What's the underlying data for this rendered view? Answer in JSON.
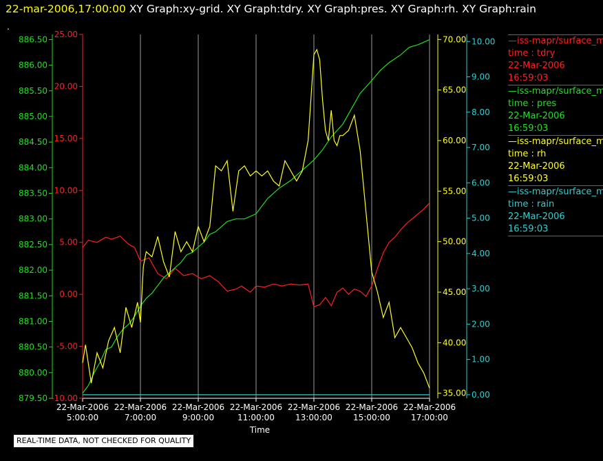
{
  "header": {
    "timestamp": "22-mar-2006,17:00:00",
    "segments": [
      "XY Graph:xy-grid.",
      "XY Graph:tdry.",
      "XY Graph:pres.",
      "XY Graph:rh.",
      "XY Graph:rain"
    ],
    "dot": "."
  },
  "legend": [
    {
      "name": "—iss-mapr/surface_m",
      "line2": "time : tdry",
      "line3": "22-Mar-2006",
      "line4": "16:59:03",
      "color": "#ff2020"
    },
    {
      "name": "—iss-mapr/surface_m",
      "line2": "time : pres",
      "line3": "22-Mar-2006",
      "line4": "16:59:03",
      "color": "#20e020"
    },
    {
      "name": "—iss-mapr/surface_m",
      "line2": "time : rh",
      "line3": "22-Mar-2006",
      "line4": "16:59:03",
      "color": "#ffff20"
    },
    {
      "name": "—iss-mapr/surface_m",
      "line2": "time : rain",
      "line3": "22-Mar-2006",
      "line4": "16:59:03",
      "color": "#30d0d0"
    }
  ],
  "disclaimer": "REAL-TIME DATA, NOT CHECKED FOR QUALITY",
  "chart_data": {
    "type": "line",
    "xlabel": "Time",
    "x_ticks": [
      {
        "date": "22-Mar-2006",
        "time": "5:00:00"
      },
      {
        "date": "22-Mar-2006",
        "time": "7:00:00"
      },
      {
        "date": "22-Mar-2006",
        "time": "9:00:00"
      },
      {
        "date": "22-Mar-2006",
        "time": "11:00:00"
      },
      {
        "date": "22-Mar-2006",
        "time": "13:00:00"
      },
      {
        "date": "22-Mar-2006",
        "time": "15:00:00"
      },
      {
        "date": "22-Mar-2006",
        "time": "17:00:00"
      }
    ],
    "x_hours": [
      5,
      7,
      9,
      11,
      13,
      15,
      17
    ],
    "xlim": [
      5,
      17
    ],
    "grid": "vertical",
    "axes": {
      "tdry": {
        "color": "#ff2020",
        "ylim": [
          -10,
          25
        ],
        "ticks": [
          "25.00",
          "20.00",
          "15.00",
          "10.00",
          "5.00",
          "0.00",
          "-5.00",
          "-10.00"
        ]
      },
      "pres": {
        "color": "#20e020",
        "ylim": [
          879.5,
          886.6
        ],
        "ticks": [
          "886.50",
          "886.00",
          "885.50",
          "885.00",
          "884.50",
          "884.00",
          "883.50",
          "883.00",
          "882.50",
          "882.00",
          "881.50",
          "881.00",
          "880.50",
          "880.00",
          "879.50"
        ]
      },
      "rh": {
        "color": "#ffff20",
        "ylim": [
          34.5,
          70.5
        ],
        "ticks": [
          "70.00",
          "65.00",
          "60.00",
          "55.00",
          "50.00",
          "45.00",
          "40.00",
          "35.00"
        ]
      },
      "rain": {
        "color": "#30d0d0",
        "ylim": [
          -0.1,
          10.2
        ],
        "ticks": [
          "10.00",
          "9.00",
          "8.00",
          "7.00",
          "6.00",
          "5.00",
          "4.00",
          "3.00",
          "2.00",
          "1.00",
          "0.00"
        ]
      }
    },
    "series": [
      {
        "axis": "tdry",
        "x": [
          5.0,
          5.2,
          5.5,
          5.8,
          6.0,
          6.3,
          6.6,
          6.8,
          7.0,
          7.3,
          7.6,
          7.9,
          8.2,
          8.5,
          8.8,
          9.1,
          9.4,
          9.7,
          10.0,
          10.3,
          10.5,
          10.8,
          11.0,
          11.3,
          11.6,
          11.9,
          12.2,
          12.5,
          12.8,
          13.0,
          13.2,
          13.4,
          13.6,
          13.8,
          14.0,
          14.2,
          14.4,
          14.6,
          14.8,
          15.0,
          15.2,
          15.4,
          15.6,
          15.8,
          16.0,
          16.2,
          16.5,
          16.8,
          17.0
        ],
        "y": [
          4.5,
          5.2,
          5.0,
          5.5,
          5.3,
          5.6,
          4.8,
          4.5,
          3.2,
          3.5,
          2.0,
          1.5,
          2.5,
          1.8,
          2.0,
          1.5,
          1.8,
          1.2,
          0.3,
          0.5,
          0.8,
          0.2,
          0.8,
          0.7,
          1.0,
          0.8,
          1.0,
          0.9,
          1.0,
          -1.2,
          -1.0,
          -0.3,
          -1.1,
          0.2,
          0.6,
          0.0,
          0.5,
          0.3,
          -0.2,
          0.8,
          2.5,
          4.0,
          5.0,
          5.5,
          6.2,
          6.8,
          7.5,
          8.2,
          8.8
        ]
      },
      {
        "axis": "pres",
        "x": [
          5.0,
          5.2,
          5.4,
          5.6,
          5.8,
          6.0,
          6.2,
          6.4,
          6.6,
          6.8,
          7.0,
          7.2,
          7.4,
          7.6,
          7.8,
          8.0,
          8.2,
          8.4,
          8.6,
          8.8,
          9.0,
          9.2,
          9.4,
          9.6,
          9.8,
          10.0,
          10.3,
          10.6,
          11.0,
          11.4,
          11.8,
          12.2,
          12.6,
          13.0,
          13.3,
          13.6,
          14.0,
          14.3,
          14.6,
          15.0,
          15.3,
          15.6,
          16.0,
          16.3,
          16.6,
          17.0
        ],
        "y": [
          879.6,
          879.75,
          880.0,
          880.2,
          880.45,
          880.5,
          880.7,
          880.85,
          880.95,
          881.1,
          881.3,
          881.45,
          881.55,
          881.7,
          881.85,
          881.95,
          882.05,
          882.15,
          882.3,
          882.35,
          882.45,
          882.55,
          882.7,
          882.75,
          882.85,
          882.95,
          883.0,
          883.0,
          883.1,
          883.4,
          883.6,
          883.75,
          883.95,
          884.15,
          884.35,
          884.6,
          884.85,
          885.15,
          885.45,
          885.7,
          885.9,
          886.05,
          886.2,
          886.35,
          886.4,
          886.5
        ]
      },
      {
        "axis": "rh",
        "x": [
          5.0,
          5.1,
          5.3,
          5.5,
          5.7,
          5.9,
          6.1,
          6.3,
          6.5,
          6.7,
          6.9,
          7.0,
          7.1,
          7.2,
          7.4,
          7.6,
          7.8,
          8.0,
          8.2,
          8.4,
          8.6,
          8.8,
          9.0,
          9.2,
          9.4,
          9.6,
          9.8,
          10.0,
          10.2,
          10.4,
          10.6,
          10.8,
          11.0,
          11.2,
          11.4,
          11.6,
          11.8,
          12.0,
          12.2,
          12.4,
          12.6,
          12.8,
          13.0,
          13.1,
          13.2,
          13.3,
          13.4,
          13.5,
          13.6,
          13.7,
          13.8,
          13.9,
          14.0,
          14.2,
          14.4,
          14.6,
          14.8,
          15.0,
          15.2,
          15.4,
          15.6,
          15.8,
          16.0,
          16.2,
          16.4,
          16.6,
          16.8,
          17.0
        ],
        "y": [
          38.0,
          39.8,
          36.0,
          39.0,
          37.5,
          40.2,
          41.5,
          39.0,
          43.5,
          41.5,
          44.0,
          42.0,
          47.5,
          49.0,
          48.5,
          50.5,
          48.0,
          46.5,
          51.0,
          49.0,
          50.0,
          49.0,
          51.5,
          50.0,
          51.5,
          57.5,
          57.0,
          58.0,
          53.0,
          57.0,
          57.5,
          56.5,
          57.0,
          56.5,
          57.0,
          56.0,
          55.5,
          58.0,
          57.0,
          56.0,
          57.0,
          60.0,
          68.5,
          69.0,
          68.0,
          64.0,
          61.0,
          60.0,
          63.0,
          60.0,
          59.5,
          60.5,
          60.5,
          61.0,
          62.5,
          59.0,
          53.0,
          47.0,
          45.0,
          42.5,
          44.0,
          40.5,
          41.5,
          40.5,
          39.5,
          38.0,
          37.0,
          35.5
        ]
      },
      {
        "axis": "rain",
        "x": [
          5.0,
          17.0
        ],
        "y": [
          0.0,
          0.0
        ]
      }
    ]
  }
}
